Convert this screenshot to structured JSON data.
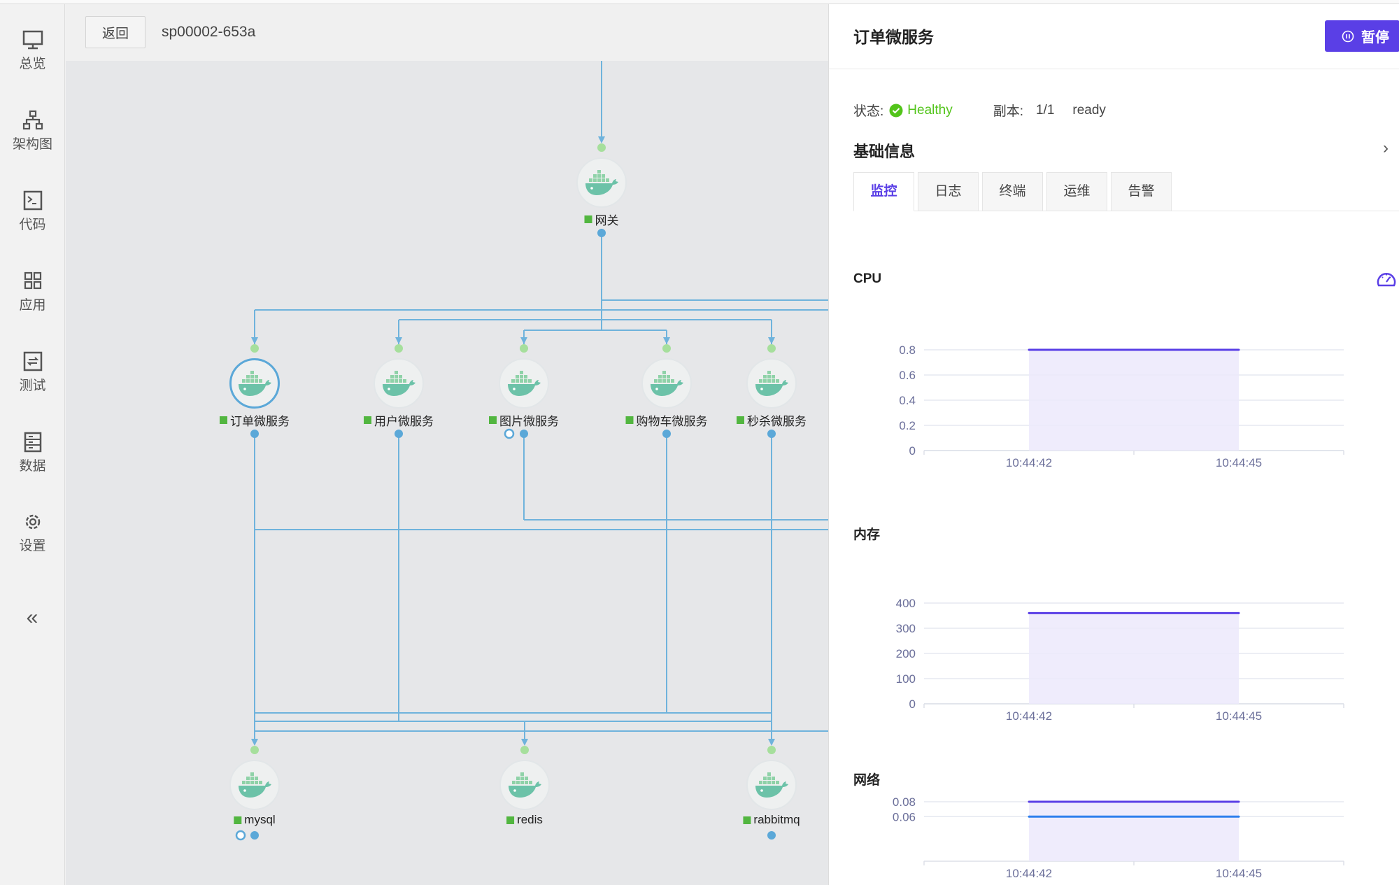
{
  "sidebar": {
    "items": [
      {
        "label": "总览",
        "icon": "monitor-icon"
      },
      {
        "label": "架构图",
        "icon": "sitemap-icon"
      },
      {
        "label": "代码",
        "icon": "terminal-icon"
      },
      {
        "label": "应用",
        "icon": "grid-icon"
      },
      {
        "label": "测试",
        "icon": "refresh-box-icon"
      },
      {
        "label": "数据",
        "icon": "database-icon"
      },
      {
        "label": "设置",
        "icon": "gear-icon"
      }
    ],
    "collapse": "«"
  },
  "topbar": {
    "back": "返回",
    "project": "sp00002-653a"
  },
  "graph": {
    "edge_color": "#6fb3dc",
    "nodes": [
      {
        "id": "gateway",
        "label": "网关"
      },
      {
        "id": "order",
        "label": "订单微服务",
        "selected": true
      },
      {
        "id": "user",
        "label": "用户微服务"
      },
      {
        "id": "image",
        "label": "图片微服务"
      },
      {
        "id": "cart",
        "label": "购物车微服务"
      },
      {
        "id": "seckill",
        "label": "秒杀微服务"
      },
      {
        "id": "mysql",
        "label": "mysql"
      },
      {
        "id": "redis",
        "label": "redis"
      },
      {
        "id": "rabbitmq",
        "label": "rabbitmq"
      }
    ]
  },
  "panel": {
    "title": "订单微服务",
    "pause": "暂停",
    "status_label": "状态:",
    "status": "Healthy",
    "replica_label": "副本:",
    "replica": "1/1",
    "ready": "ready",
    "basic_info": "基础信息",
    "tabs": [
      "监控",
      "日志",
      "终端",
      "运维",
      "告警"
    ],
    "active_tab": "监控",
    "accent": "#5a3fe6"
  },
  "chart_data": [
    {
      "type": "area",
      "title": "CPU",
      "categories": [
        "10:44:42",
        "10:44:45"
      ],
      "series": [
        {
          "values": [
            0.8,
            0.8
          ],
          "color": "#5a3fe6"
        }
      ],
      "yticks": [
        "0",
        "0.2",
        "0.4",
        "0.6",
        "0.8"
      ],
      "ylim": [
        0,
        0.8
      ],
      "grid": true
    },
    {
      "type": "area",
      "title": "内存",
      "categories": [
        "10:44:42",
        "10:44:45"
      ],
      "series": [
        {
          "values": [
            360,
            360
          ],
          "color": "#5a3fe6"
        }
      ],
      "yticks": [
        "0",
        "100",
        "200",
        "300",
        "400"
      ],
      "ylim": [
        0,
        400
      ],
      "grid": true
    },
    {
      "type": "area",
      "title": "网络",
      "categories": [
        "10:44:42",
        "10:44:45"
      ],
      "series": [
        {
          "values": [
            0.08,
            0.08
          ],
          "color": "#5a3fe6"
        },
        {
          "values": [
            0.06,
            0.06
          ],
          "color": "#2f80ed"
        }
      ],
      "yticks": [
        "0.06",
        "0.08"
      ],
      "ylim": [
        0,
        0.08
      ],
      "grid": true
    }
  ]
}
